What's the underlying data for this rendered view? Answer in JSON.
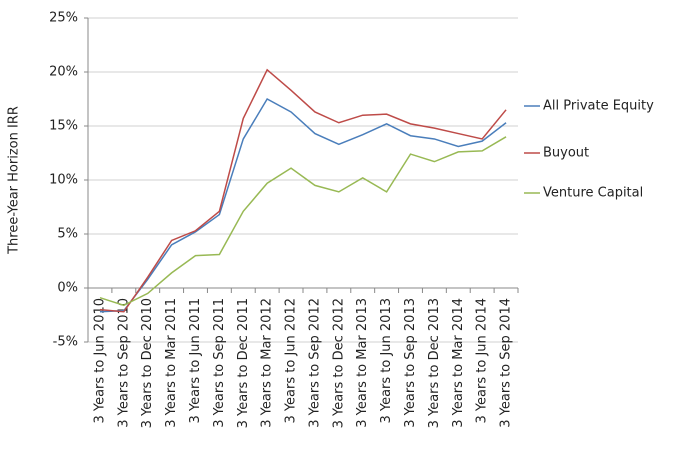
{
  "chart_data": {
    "type": "line",
    "y_label": "Three-Year Horizon IRR",
    "categories": [
      "3 Years to Jun 2010",
      "3 Years to Sep 2010",
      "3 Years to Dec 2010",
      "3 Years to Mar 2011",
      "3 Years to Jun 2011",
      "3 Years to Sep 2011",
      "3 Years to Dec 2011",
      "3 Years to Mar 2012",
      "3 Years to Jun 2012",
      "3 Years to Sep 2012",
      "3 Years to Dec 2012",
      "3 Years to Mar 2013",
      "3 Years to Jun 2013",
      "3 Years to Sep 2013",
      "3 Years to Dec 2013",
      "3 Years to Mar 2014",
      "3 Years to Jun 2014",
      "3 Years to Sep 2014"
    ],
    "series": [
      {
        "name": "All Private Equity",
        "color": "#4a7ebb",
        "values": [
          -2.2,
          -2.1,
          0.8,
          4.0,
          5.2,
          6.8,
          13.8,
          17.5,
          16.3,
          14.3,
          13.3,
          14.2,
          15.2,
          14.1,
          13.8,
          13.1,
          13.6,
          15.3
        ]
      },
      {
        "name": "Buyout",
        "color": "#be4b48",
        "values": [
          -2.0,
          -2.2,
          1.0,
          4.4,
          5.3,
          7.1,
          15.7,
          20.2,
          18.3,
          16.3,
          15.3,
          16.0,
          16.1,
          15.2,
          14.8,
          14.3,
          13.8,
          16.5
        ]
      },
      {
        "name": "Venture Capital",
        "color": "#98b954",
        "values": [
          -0.9,
          -1.6,
          -0.5,
          1.4,
          3.0,
          3.1,
          7.1,
          9.7,
          11.1,
          9.5,
          8.9,
          10.2,
          8.9,
          12.4,
          11.7,
          12.6,
          12.7,
          14.0
        ]
      }
    ],
    "ylim": [
      -5,
      25
    ],
    "yticks": [
      {
        "value": -5,
        "label": "-5%"
      },
      {
        "value": 0,
        "label": "0%"
      },
      {
        "value": 5,
        "label": "5%"
      },
      {
        "value": 10,
        "label": "10%"
      },
      {
        "value": 15,
        "label": "15%"
      },
      {
        "value": 20,
        "label": "20%"
      },
      {
        "value": 25,
        "label": "25%"
      }
    ],
    "grid": true,
    "legend": "right"
  }
}
